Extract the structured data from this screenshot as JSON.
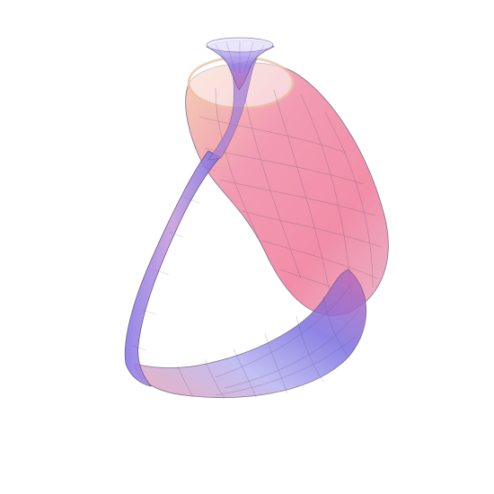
{
  "figure": {
    "subject": "klein-bottle-surface",
    "colors": {
      "background": "#ffffff",
      "pink": "#f07a9a",
      "rose": "#e8a3b4",
      "violet": "#7b6fe0",
      "lavender": "#b8b4f2",
      "peach": "#f4c9a8",
      "mesh": "#5a4a6a"
    }
  }
}
